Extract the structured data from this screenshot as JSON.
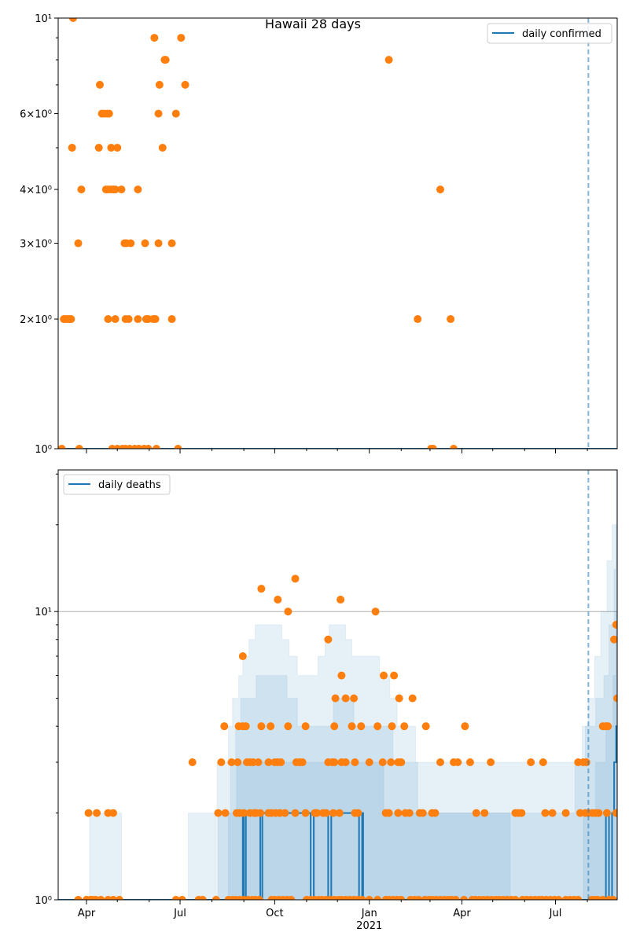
{
  "chart_data": [
    {
      "type": "scatter",
      "title": "Hawaii 28 days",
      "x_origin": "2020-04-01",
      "x_units": "days since x_origin",
      "xlim": [
        -27.5,
        516
      ],
      "ylim": [
        1,
        10
      ],
      "yscale": "log",
      "ytick_values": [
        1,
        2,
        3,
        4,
        6,
        10
      ],
      "ytick_labels": [
        "10⁰",
        "2×10⁰",
        "3×10⁰",
        "4×10⁰",
        "6×10⁰",
        "10¹"
      ],
      "minor_y": [
        5,
        7,
        8,
        9
      ],
      "legend": {
        "label": "daily confirmed",
        "placement": "top-right"
      },
      "line_color": "#1f77b4",
      "point_color": "#ff7f0e",
      "vline_day": 488,
      "line": [
        [
          -27.5,
          1
        ],
        [
          516,
          1
        ]
      ],
      "points": [
        {
          "y": 10,
          "days": [
            -13
          ]
        },
        {
          "y": 9,
          "days": [
            66,
            92
          ]
        },
        {
          "y": 8,
          "days": [
            76,
            77,
            294
          ]
        },
        {
          "y": 7,
          "days": [
            13,
            71,
            96
          ]
        },
        {
          "y": 6,
          "days": [
            15,
            17,
            20,
            22,
            70,
            87
          ]
        },
        {
          "y": 5,
          "days": [
            -14,
            12,
            24,
            30,
            74
          ]
        },
        {
          "y": 4,
          "days": [
            -5,
            19,
            21,
            24,
            26,
            28,
            34,
            50,
            344
          ]
        },
        {
          "y": 3,
          "days": [
            -8,
            37,
            39,
            43,
            57,
            70,
            83
          ]
        },
        {
          "y": 2,
          "days": [
            -22,
            -20,
            -18,
            -16,
            -15,
            21,
            28,
            38,
            41,
            50,
            58,
            60,
            65,
            67,
            83,
            322,
            354
          ]
        },
        {
          "y": 1,
          "days": [
            -24,
            -7,
            25,
            30,
            35,
            38,
            42,
            47,
            51,
            56,
            60,
            68,
            89,
            335,
            337,
            357
          ]
        }
      ]
    },
    {
      "type": "scatter",
      "x_origin": "2020-04-01",
      "x_units": "days since x_origin",
      "xlim": [
        -27.5,
        516
      ],
      "ylim": [
        1,
        31
      ],
      "yscale": "log",
      "ytick_values": [
        1,
        10
      ],
      "ytick_labels": [
        "10⁰",
        "10¹"
      ],
      "minor_y": [
        2,
        3,
        4,
        5,
        6,
        7,
        8,
        9,
        20,
        30
      ],
      "grid_y": [
        10
      ],
      "xtick_days": [
        0,
        91,
        183,
        275,
        365,
        456
      ],
      "xtick_labels": [
        "Apr",
        "Jul",
        "Oct",
        "Jan",
        "Apr",
        "Jul"
      ],
      "xtick_sublabel": "2021",
      "minor_x_days": [
        30,
        61,
        122,
        153,
        214,
        244,
        306,
        334,
        395,
        426,
        487
      ],
      "legend": {
        "label": "daily deaths",
        "placement": "top-left"
      },
      "line_color": "#1f77b4",
      "point_color": "#ff7f0e",
      "vline_day": 488,
      "line": [
        [
          -27.5,
          1
        ],
        [
          152,
          2
        ],
        [
          153,
          1
        ],
        [
          155,
          2
        ],
        [
          169,
          1
        ],
        [
          171,
          2
        ],
        [
          218,
          1
        ],
        [
          221,
          2
        ],
        [
          235,
          1
        ],
        [
          238,
          2
        ],
        [
          265,
          1
        ],
        [
          268,
          2
        ],
        [
          269,
          1
        ],
        [
          505,
          2
        ],
        [
          508,
          1
        ],
        [
          511,
          2
        ],
        [
          513,
          3
        ],
        [
          515,
          4
        ]
      ],
      "bands": [
        [
          [
            -27.5,
            1
          ],
          [
            3,
            2
          ],
          [
            34,
            1
          ],
          [
            99,
            2
          ],
          [
            127,
            3
          ],
          [
            138,
            4
          ],
          [
            142,
            5
          ],
          [
            148,
            6
          ],
          [
            152,
            7
          ],
          [
            158,
            8
          ],
          [
            164,
            9
          ],
          [
            190,
            8
          ],
          [
            197,
            7
          ],
          [
            205,
            6
          ],
          [
            225,
            7
          ],
          [
            232,
            8
          ],
          [
            236,
            9
          ],
          [
            252,
            8
          ],
          [
            258,
            7
          ],
          [
            285,
            6
          ],
          [
            295,
            5
          ],
          [
            302,
            4
          ],
          [
            320,
            3
          ],
          [
            478,
            3
          ],
          [
            482,
            4
          ],
          [
            488,
            5
          ],
          [
            494,
            7
          ],
          [
            500,
            10
          ],
          [
            506,
            15
          ],
          [
            511,
            20
          ],
          [
            515,
            31
          ]
        ],
        [
          [
            -27.5,
            1
          ],
          [
            128,
            2
          ],
          [
            140,
            3
          ],
          [
            145,
            4
          ],
          [
            150,
            5
          ],
          [
            165,
            6
          ],
          [
            195,
            5
          ],
          [
            205,
            4
          ],
          [
            240,
            5
          ],
          [
            260,
            4
          ],
          [
            298,
            3
          ],
          [
            322,
            2
          ],
          [
            475,
            3
          ],
          [
            485,
            4
          ],
          [
            495,
            5
          ],
          [
            503,
            6
          ],
          [
            508,
            9
          ],
          [
            513,
            14
          ],
          [
            515,
            20
          ]
        ],
        [
          [
            -27.5,
            1
          ],
          [
            138,
            2
          ],
          [
            146,
            3
          ],
          [
            289,
            2
          ],
          [
            412,
            1
          ],
          [
            483,
            2
          ],
          [
            495,
            3
          ],
          [
            505,
            4
          ],
          [
            512,
            6
          ],
          [
            515,
            10
          ]
        ]
      ],
      "points": [
        {
          "y": 13,
          "days": [
            203
          ]
        },
        {
          "y": 12,
          "days": [
            170
          ]
        },
        {
          "y": 11,
          "days": [
            186,
            247
          ]
        },
        {
          "y": 10,
          "days": [
            196,
            281
          ]
        },
        {
          "y": 9,
          "days": [
            515
          ]
        },
        {
          "y": 8,
          "days": [
            235,
            513
          ]
        },
        {
          "y": 7,
          "days": [
            152
          ]
        },
        {
          "y": 6,
          "days": [
            248,
            289,
            299
          ]
        },
        {
          "y": 5,
          "days": [
            242,
            252,
            260,
            304,
            317,
            516
          ]
        },
        {
          "y": 4,
          "days": [
            134,
            148,
            152,
            155,
            170,
            179,
            196,
            213,
            241,
            258,
            267,
            283,
            297,
            309,
            330,
            368,
            502,
            505,
            507
          ]
        },
        {
          "y": 3,
          "days": [
            103,
            131,
            141,
            147,
            156,
            159,
            162,
            167,
            177,
            183,
            186,
            189,
            204,
            207,
            210,
            235,
            239,
            241,
            248,
            252,
            261,
            275,
            288,
            296,
            303,
            306,
            344,
            357,
            361,
            373,
            393,
            432,
            444,
            478,
            483,
            486
          ]
        },
        {
          "y": 2,
          "days": [
            2,
            10,
            21,
            26,
            128,
            135,
            146,
            149,
            153,
            159,
            163,
            165,
            169,
            177,
            180,
            184,
            188,
            193,
            203,
            213,
            222,
            224,
            230,
            233,
            240,
            246,
            261,
            264,
            291,
            294,
            303,
            310,
            314,
            324,
            327,
            336,
            339,
            379,
            387,
            417,
            420,
            423,
            446,
            453,
            466,
            480,
            485,
            488,
            492,
            495,
            498,
            506,
            515
          ]
        },
        {
          "y": 1,
          "days": [
            -8,
            0,
            4,
            6,
            9,
            14,
            21,
            26,
            32,
            87,
            93,
            109,
            113,
            126,
            138,
            142,
            145,
            149,
            153,
            157,
            161,
            164,
            168,
            180,
            183,
            187,
            191,
            195,
            199,
            214,
            218,
            222,
            226,
            229,
            233,
            237,
            241,
            245,
            248,
            252,
            256,
            260,
            264,
            268,
            275,
            283,
            291,
            294,
            298,
            302,
            306,
            315,
            319,
            323,
            329,
            333,
            336,
            340,
            344,
            348,
            352,
            355,
            359,
            367,
            375,
            378,
            382,
            386,
            390,
            394,
            398,
            401,
            405,
            409,
            413,
            417,
            424,
            428,
            432,
            436,
            440,
            443,
            447,
            451,
            455,
            459,
            466,
            470,
            474,
            478,
            491,
            494,
            497,
            502,
            508,
            512
          ]
        }
      ]
    }
  ]
}
